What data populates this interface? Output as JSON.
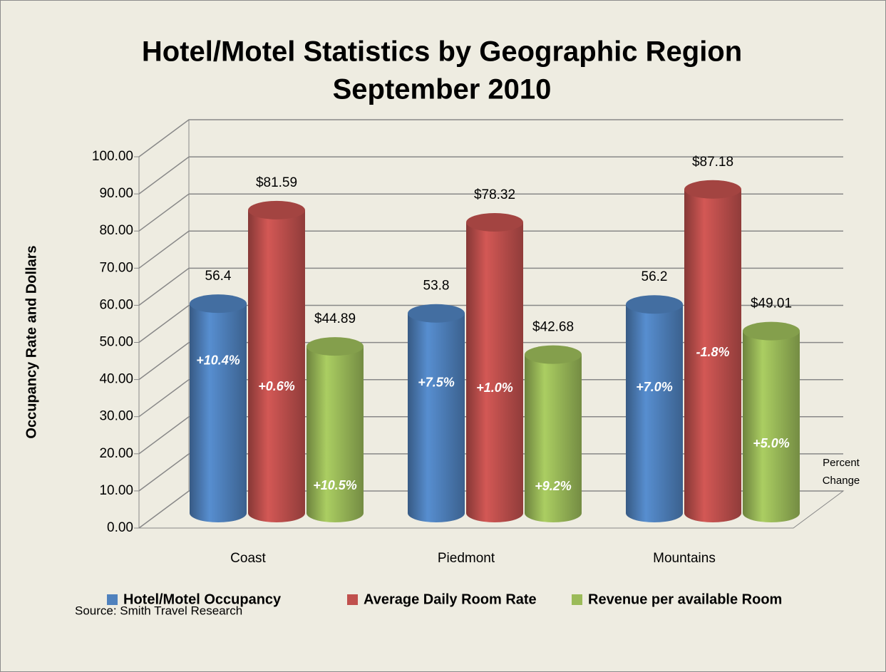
{
  "chart_data": {
    "type": "bar3d",
    "title": [
      "Hotel/Motel Statistics by Geographic Region",
      "September 2010"
    ],
    "y_label": "Occupancy Rate and Dollars",
    "categories": [
      "Coast",
      "Piedmont",
      "Mountains"
    ],
    "series": [
      {
        "name": "Hotel/Motel Occupancy",
        "color": "#4f81bd",
        "values": [
          56.4,
          53.8,
          56.2
        ],
        "change_labels": [
          "+10.4%",
          "+7.5%",
          "+7.0%"
        ]
      },
      {
        "name": "Average Daily Room Rate",
        "color": "#c0504d",
        "values": [
          81.59,
          78.32,
          87.18
        ],
        "value_labels": [
          "$81.59",
          "$78.32",
          "$87.18"
        ],
        "change_labels": [
          "+0.6%",
          "+1.0%",
          "-1.8%"
        ]
      },
      {
        "name": "Revenue per available Room",
        "color": "#9bbb59",
        "values": [
          44.89,
          42.68,
          49.01
        ],
        "value_labels": [
          "$44.89",
          "$42.68",
          "$49.01"
        ],
        "change_labels": [
          "+10.5%",
          "+9.2%",
          "+5.0%"
        ]
      }
    ],
    "ylim": [
      0,
      100
    ],
    "yticks": [
      {
        "value": 0,
        "label": "0.00"
      },
      {
        "value": 10,
        "label": "10.00"
      },
      {
        "value": 20,
        "label": "20.00"
      },
      {
        "value": 30,
        "label": "30.00"
      },
      {
        "value": 40,
        "label": "40.00"
      },
      {
        "value": 50,
        "label": "50.00"
      },
      {
        "value": 60,
        "label": "60.00"
      },
      {
        "value": 70,
        "label": "70.00"
      },
      {
        "value": 80,
        "label": "80.00"
      },
      {
        "value": 90,
        "label": "90.00"
      },
      {
        "value": 100,
        "label": "100.00"
      }
    ],
    "grid": true,
    "legend": "bottom",
    "annotation": [
      "Percent",
      "Change"
    ],
    "source": "Source: Smith Travel Research"
  }
}
